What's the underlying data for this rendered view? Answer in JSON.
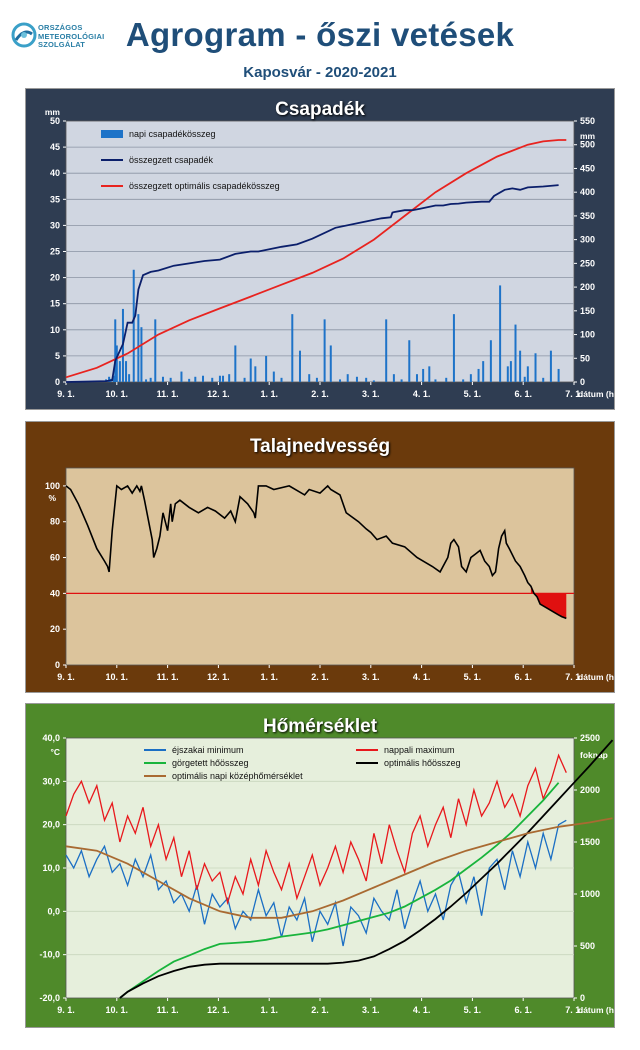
{
  "header": {
    "logo_lines": [
      "ORSZÁGOS",
      "METEOROLÓGIAI",
      "SZOLGÁLAT"
    ],
    "title": "Agrogram - őszi vetések",
    "subtitle": "Kaposvár - 2020-2021"
  },
  "colors": {
    "precip_bg": "#2f3d52",
    "precip_plot": "#d0d6e1",
    "soil_bg": "#6b3a0c",
    "soil_plot": "#dcc49c",
    "temp_bg": "#4f8a2a",
    "temp_plot": "#e6efdc",
    "daily_bar": "#1e73c8",
    "cum_precip": "#0b1f6b",
    "opt_precip": "#e8231f",
    "soil_line": "#000000",
    "threshold": "#e01010",
    "tmin": "#1b6fc4",
    "tmax": "#e8181c",
    "rolling": "#19b43c",
    "opt_heat": "#000000",
    "opt_temp": "#a96a32"
  },
  "chart_data": [
    {
      "type": "bar",
      "title": "Csapadék",
      "xlabel": "dátum (hó.nap)",
      "ylabel": "mm",
      "y2label": "mm",
      "x_ticks": [
        "9. 1.",
        "10. 1.",
        "11. 1.",
        "12. 1.",
        "1. 1.",
        "2. 1.",
        "3. 1.",
        "4. 1.",
        "5. 1.",
        "6. 1.",
        "7. 1."
      ],
      "ylim": [
        0,
        50
      ],
      "y2lim": [
        0,
        550
      ],
      "y_ticks": [
        "0",
        "5",
        "10",
        "15",
        "20",
        "25",
        "30",
        "35",
        "40",
        "45",
        "50"
      ],
      "y2_ticks": [
        "0",
        "50",
        "100",
        "150",
        "200",
        "250",
        "300",
        "350",
        "400",
        "450",
        "500",
        "550"
      ],
      "legend": [
        "napi csapadékösszeg",
        "összegzett csapadék",
        "összegzett optimális csapadékösszeg"
      ],
      "legend_position": "top-left",
      "grid": true,
      "series": [
        {
          "name": "napi csapadékösszeg",
          "type": "bar",
          "axis": "left",
          "days": [
            26,
            28,
            29,
            31,
            32,
            33,
            35,
            37,
            39,
            41,
            44,
            47,
            49,
            52,
            55,
            58,
            63,
            68,
            75,
            80,
            84,
            89,
            95,
            100,
            102,
            106,
            110,
            116,
            120,
            123,
            130,
            135,
            140,
            147,
            152,
            158,
            163,
            168,
            172,
            178,
            183,
            189,
            195,
            200,
            208,
            213,
            218,
            223,
            228,
            232,
            236,
            240,
            247,
            252,
            258,
            263,
            268,
            271,
            276,
            282,
            287,
            289,
            292,
            295,
            298,
            300,
            305,
            310,
            315,
            320
          ],
          "values": [
            0.5,
            1,
            0.6,
            1.2,
            12,
            7,
            4,
            14,
            4,
            1.5,
            21.5,
            13,
            10.5,
            0.5,
            0.8,
            12,
            1,
            0.8,
            2,
            0.6,
            1,
            1.2,
            0.8,
            1.2,
            1.2,
            1.5,
            7,
            0.8,
            4.5,
            3,
            5,
            2,
            0.8,
            13,
            6,
            1.5,
            0.8,
            12,
            7,
            0.5,
            1.5,
            1,
            0.8,
            0.3,
            12,
            1.5,
            0.5,
            8,
            1.5,
            2.5,
            3,
            0.5,
            0.8,
            13,
            0.5,
            1.5,
            2.5,
            4,
            8,
            18.5,
            3,
            4,
            11,
            6,
            1,
            3,
            5.5,
            0.8,
            6,
            2.5
          ]
        },
        {
          "name": "összegzett csapadék",
          "type": "line",
          "axis": "right",
          "x": [
            0,
            26,
            30,
            32,
            37,
            40,
            43,
            45,
            47,
            50,
            55,
            60,
            70,
            80,
            90,
            100,
            110,
            120,
            125,
            140,
            150,
            160,
            175,
            190,
            205,
            211,
            212,
            213,
            220,
            225,
            230,
            240,
            245,
            250,
            255,
            260,
            270,
            275,
            278,
            285,
            290,
            295,
            300,
            310,
            320
          ],
          "y": [
            0,
            2,
            4,
            45,
            80,
            125,
            125,
            140,
            195,
            225,
            232,
            235,
            245,
            250,
            255,
            258,
            270,
            275,
            275,
            285,
            290,
            302,
            325,
            335,
            345,
            347,
            357,
            358,
            362,
            362,
            365,
            372,
            372,
            375,
            376,
            378,
            380,
            380,
            392,
            405,
            408,
            405,
            410,
            412,
            415
          ]
        },
        {
          "name": "összegzett optimális csapadékösszeg",
          "type": "line",
          "axis": "right",
          "x": [
            0,
            20,
            40,
            60,
            80,
            100,
            120,
            140,
            160,
            180,
            200,
            220,
            240,
            260,
            280,
            300,
            310,
            320,
            325
          ],
          "y": [
            10,
            30,
            60,
            100,
            130,
            155,
            180,
            205,
            230,
            260,
            300,
            350,
            400,
            440,
            475,
            500,
            507,
            510,
            510
          ]
        }
      ]
    },
    {
      "type": "line",
      "title": "Talajnedvesség",
      "xlabel": "dátum (hó.nap)",
      "ylabel": "%",
      "x_ticks": [
        "9. 1.",
        "10. 1.",
        "11. 1.",
        "12. 1.",
        "1. 1.",
        "2. 1.",
        "3. 1.",
        "4. 1.",
        "5. 1.",
        "6. 1.",
        "7. 1."
      ],
      "ylim": [
        0,
        110
      ],
      "y_ticks": [
        "0",
        "20",
        "40",
        "60",
        "80",
        "100"
      ],
      "threshold": 40,
      "grid": false,
      "series": [
        {
          "name": "",
          "x": [
            0,
            3,
            8,
            14,
            20,
            25,
            27,
            28,
            30,
            33,
            36,
            40,
            43,
            46,
            48,
            49,
            51,
            56,
            57,
            59,
            61,
            63,
            66,
            68,
            69,
            71,
            74,
            80,
            86,
            92,
            97,
            103,
            107,
            110,
            113,
            118,
            122,
            123,
            125,
            130,
            135,
            145,
            155,
            158,
            165,
            170,
            172,
            178,
            182,
            190,
            195,
            198,
            202,
            208,
            212,
            220,
            228,
            232,
            238,
            243,
            248,
            250,
            252,
            255,
            257,
            260,
            263,
            266,
            269,
            272,
            275,
            277,
            279,
            280,
            281,
            283,
            285,
            286,
            288,
            292,
            295,
            298,
            300,
            302,
            304,
            306,
            308,
            312,
            316,
            320,
            322,
            325
          ],
          "y": [
            100,
            98,
            90,
            78,
            65,
            58,
            55,
            52,
            75,
            100,
            98,
            100,
            96,
            100,
            97,
            100,
            92,
            70,
            60,
            65,
            72,
            85,
            75,
            90,
            80,
            90,
            92,
            88,
            85,
            88,
            86,
            82,
            86,
            80,
            94,
            90,
            85,
            82,
            100,
            100,
            98,
            100,
            95,
            98,
            96,
            100,
            98,
            95,
            85,
            80,
            76,
            74,
            70,
            72,
            68,
            66,
            60,
            58,
            55,
            52,
            60,
            68,
            70,
            66,
            55,
            52,
            60,
            62,
            64,
            58,
            55,
            50,
            52,
            58,
            65,
            72,
            75,
            68,
            65,
            58,
            55,
            50,
            46,
            44,
            40,
            38,
            34,
            32,
            30,
            28,
            27,
            26
          ]
        }
      ]
    },
    {
      "type": "line",
      "title": "Hőmérséklet",
      "xlabel": "dátum (hó.nap)",
      "ylabel": "°C",
      "y2label": "foknap",
      "x_ticks": [
        "9. 1.",
        "10. 1.",
        "11. 1.",
        "12. 1.",
        "1. 1.",
        "2. 1.",
        "3. 1.",
        "4. 1.",
        "5. 1.",
        "6. 1.",
        "7. 1."
      ],
      "ylim": [
        -20,
        40
      ],
      "y2lim": [
        0,
        2500
      ],
      "y_ticks": [
        "-20,0",
        "-10,0",
        "0,0",
        "10,0",
        "20,0",
        "30,0",
        "40,0"
      ],
      "y2_ticks": [
        "0",
        "500",
        "1000",
        "1500",
        "2000",
        "2500"
      ],
      "legend": [
        "éjszakai minimum",
        "nappali maximum",
        "görgetett hőösszeg",
        "optimális hőösszeg",
        "optimális napi középhőmérséklet"
      ],
      "legend_position": "top",
      "grid": true,
      "series": [
        {
          "name": "éjszakai minimum",
          "axis": "left",
          "x": [
            0,
            5,
            10,
            15,
            20,
            25,
            30,
            35,
            40,
            45,
            50,
            55,
            60,
            65,
            70,
            75,
            80,
            85,
            90,
            95,
            100,
            105,
            110,
            115,
            120,
            125,
            130,
            135,
            140,
            145,
            150,
            155,
            160,
            165,
            170,
            175,
            180,
            185,
            190,
            195,
            200,
            205,
            210,
            215,
            220,
            225,
            230,
            235,
            240,
            245,
            250,
            255,
            260,
            265,
            270,
            275,
            280,
            285,
            290,
            295,
            300,
            305,
            310,
            315,
            320,
            325
          ],
          "y": [
            13,
            10,
            14,
            8,
            12,
            15,
            9,
            11,
            6,
            12,
            8,
            13,
            5,
            7,
            2,
            4,
            0,
            6,
            -3,
            4,
            1,
            3,
            -4,
            0,
            -2,
            5,
            -1,
            2,
            -6,
            1,
            -2,
            3,
            -7,
            0,
            -3,
            2,
            -8,
            1,
            -1,
            -5,
            3,
            0,
            -2,
            5,
            -4,
            2,
            7,
            0,
            4,
            -2,
            6,
            9,
            2,
            8,
            -1,
            10,
            12,
            5,
            14,
            8,
            16,
            10,
            18,
            12,
            20,
            21
          ]
        },
        {
          "name": "nappali maximum",
          "axis": "left",
          "x": [
            0,
            5,
            10,
            15,
            20,
            25,
            30,
            35,
            40,
            45,
            50,
            55,
            60,
            65,
            70,
            75,
            80,
            85,
            90,
            95,
            100,
            105,
            110,
            115,
            120,
            125,
            130,
            135,
            140,
            145,
            150,
            155,
            160,
            165,
            170,
            175,
            180,
            185,
            190,
            195,
            200,
            205,
            210,
            215,
            220,
            225,
            230,
            235,
            240,
            245,
            250,
            255,
            260,
            265,
            270,
            275,
            280,
            285,
            290,
            295,
            300,
            305,
            310,
            315,
            320,
            325
          ],
          "y": [
            22,
            27,
            30,
            25,
            29,
            21,
            25,
            16,
            22,
            18,
            24,
            15,
            20,
            12,
            17,
            8,
            14,
            5,
            11,
            7,
            9,
            2,
            8,
            4,
            12,
            6,
            14,
            9,
            5,
            11,
            3,
            8,
            13,
            6,
            10,
            15,
            9,
            16,
            12,
            7,
            18,
            11,
            20,
            14,
            9,
            18,
            22,
            15,
            20,
            24,
            17,
            26,
            20,
            28,
            22,
            25,
            30,
            24,
            27,
            22,
            29,
            33,
            26,
            30,
            36,
            32
          ]
        },
        {
          "name": "görgetett hőösszeg",
          "axis": "right",
          "x": [
            35,
            40,
            50,
            60,
            70,
            80,
            90,
            100,
            110,
            120,
            130,
            140,
            150,
            160,
            170,
            180,
            190,
            200,
            210,
            220,
            230,
            240,
            250,
            260,
            270,
            280,
            290,
            300,
            310,
            320
          ],
          "y": [
            0,
            60,
            160,
            260,
            350,
            410,
            470,
            520,
            530,
            540,
            560,
            590,
            610,
            630,
            660,
            700,
            740,
            780,
            820,
            880,
            960,
            1040,
            1130,
            1240,
            1350,
            1470,
            1600,
            1750,
            1900,
            2070
          ]
        },
        {
          "name": "optimális hőösszeg",
          "axis": "right",
          "x": [
            35,
            40,
            50,
            60,
            70,
            80,
            90,
            100,
            110,
            120,
            130,
            140,
            150,
            160,
            170,
            180,
            190,
            200,
            210,
            220,
            230,
            240,
            250,
            260,
            270,
            280,
            290,
            300,
            310,
            320,
            330,
            340,
            355
          ],
          "y": [
            0,
            60,
            140,
            210,
            260,
            300,
            320,
            330,
            330,
            330,
            330,
            330,
            330,
            330,
            330,
            340,
            360,
            400,
            470,
            550,
            650,
            760,
            880,
            1010,
            1150,
            1290,
            1440,
            1590,
            1750,
            1910,
            2070,
            2230,
            2480
          ]
        },
        {
          "name": "optimális napi középhőmérséklet",
          "axis": "left",
          "x": [
            0,
            20,
            40,
            60,
            80,
            100,
            120,
            140,
            160,
            180,
            200,
            220,
            240,
            260,
            280,
            300,
            320,
            340,
            355
          ],
          "y": [
            15,
            14,
            11,
            7,
            3,
            0,
            -1.5,
            -1.5,
            0,
            2.5,
            5.5,
            8.5,
            11.5,
            14,
            16,
            18,
            19.5,
            20.5,
            21.5
          ]
        }
      ]
    }
  ]
}
